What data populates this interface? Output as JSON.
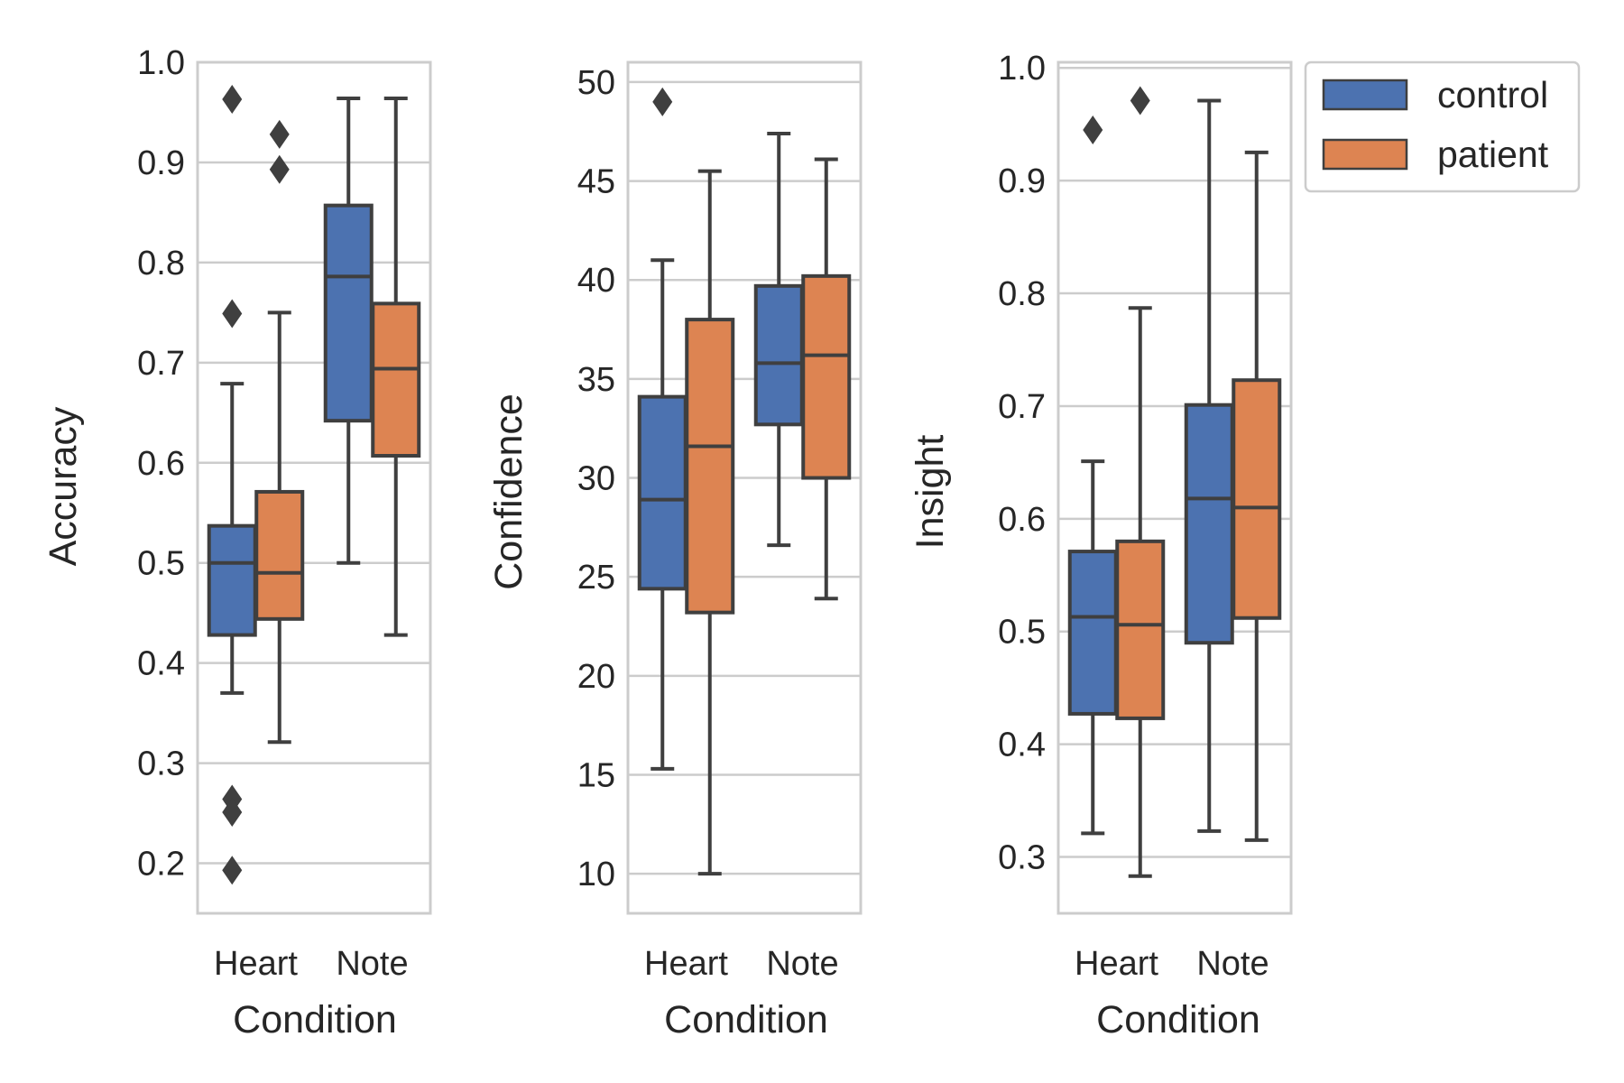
{
  "colors": {
    "control": "#4C72B0",
    "patient": "#DD8452",
    "box_edge": "#3f3f3f",
    "grid": "#cccccc",
    "frame": "#cccccc"
  },
  "legend": {
    "placement": "upper-right, outside third panel",
    "entries": [
      {
        "label": "control",
        "color_key": "control"
      },
      {
        "label": "patient",
        "color_key": "patient"
      }
    ]
  },
  "chart_data": [
    {
      "type": "box",
      "ylabel": "Accuracy",
      "xlabel": "Condition",
      "categories": [
        "Heart",
        "Note"
      ],
      "ylim": [
        0.15,
        1.0
      ],
      "yticks": [
        0.2,
        0.3,
        0.4,
        0.5,
        0.6,
        0.7,
        0.8,
        0.9,
        1.0
      ],
      "ytick_labels": [
        "0.2",
        "0.3",
        "0.4",
        "0.5",
        "0.6",
        "0.7",
        "0.8",
        "0.9",
        "1.0"
      ],
      "grid": true,
      "series": [
        {
          "name": "control",
          "boxes": [
            {
              "whislo": 0.37,
              "q1": 0.428,
              "med": 0.5,
              "q3": 0.537,
              "whishi": 0.679,
              "fliers": [
                0.963,
                0.749,
                0.264,
                0.251,
                0.193
              ]
            },
            {
              "whislo": 0.5,
              "q1": 0.642,
              "med": 0.786,
              "q3": 0.857,
              "whishi": 0.964,
              "fliers": []
            }
          ]
        },
        {
          "name": "patient",
          "boxes": [
            {
              "whislo": 0.321,
              "q1": 0.444,
              "med": 0.49,
              "q3": 0.571,
              "whishi": 0.75,
              "fliers": [
                0.928,
                0.893
              ]
            },
            {
              "whislo": 0.428,
              "q1": 0.607,
              "med": 0.694,
              "q3": 0.759,
              "whishi": 0.964,
              "fliers": []
            }
          ]
        }
      ]
    },
    {
      "type": "box",
      "ylabel": "Confidence",
      "xlabel": "Condition",
      "categories": [
        "Heart",
        "Note"
      ],
      "ylim": [
        8,
        51
      ],
      "yticks": [
        10,
        15,
        20,
        25,
        30,
        35,
        40,
        45,
        50
      ],
      "ytick_labels": [
        "10",
        "15",
        "20",
        "25",
        "30",
        "35",
        "40",
        "45",
        "50"
      ],
      "grid": true,
      "series": [
        {
          "name": "control",
          "boxes": [
            {
              "whislo": 15.3,
              "q1": 24.4,
              "med": 28.9,
              "q3": 34.1,
              "whishi": 41.0,
              "fliers": [
                49.0
              ]
            },
            {
              "whislo": 26.6,
              "q1": 32.7,
              "med": 35.8,
              "q3": 39.7,
              "whishi": 47.4,
              "fliers": []
            }
          ]
        },
        {
          "name": "patient",
          "boxes": [
            {
              "whislo": 10.0,
              "q1": 23.2,
              "med": 31.6,
              "q3": 38.0,
              "whishi": 45.5,
              "fliers": []
            },
            {
              "whislo": 23.9,
              "q1": 30.0,
              "med": 36.2,
              "q3": 40.2,
              "whishi": 46.1,
              "fliers": []
            }
          ]
        }
      ]
    },
    {
      "type": "box",
      "ylabel": "Insight",
      "xlabel": "Condition",
      "categories": [
        "Heart",
        "Note"
      ],
      "ylim": [
        0.25,
        1.005
      ],
      "yticks": [
        0.3,
        0.4,
        0.5,
        0.6,
        0.7,
        0.8,
        0.9,
        1.0
      ],
      "ytick_labels": [
        "0.3",
        "0.4",
        "0.5",
        "0.6",
        "0.7",
        "0.8",
        "0.9",
        "1.0"
      ],
      "grid": true,
      "series": [
        {
          "name": "control",
          "boxes": [
            {
              "whislo": 0.321,
              "q1": 0.427,
              "med": 0.513,
              "q3": 0.571,
              "whishi": 0.651,
              "fliers": [
                0.945
              ]
            },
            {
              "whislo": 0.323,
              "q1": 0.49,
              "med": 0.618,
              "q3": 0.701,
              "whishi": 0.971,
              "fliers": []
            }
          ]
        },
        {
          "name": "patient",
          "boxes": [
            {
              "whislo": 0.283,
              "q1": 0.423,
              "med": 0.506,
              "q3": 0.58,
              "whishi": 0.787,
              "fliers": [
                0.971
              ]
            },
            {
              "whislo": 0.315,
              "q1": 0.512,
              "med": 0.61,
              "q3": 0.723,
              "whishi": 0.925,
              "fliers": []
            }
          ]
        }
      ]
    }
  ]
}
